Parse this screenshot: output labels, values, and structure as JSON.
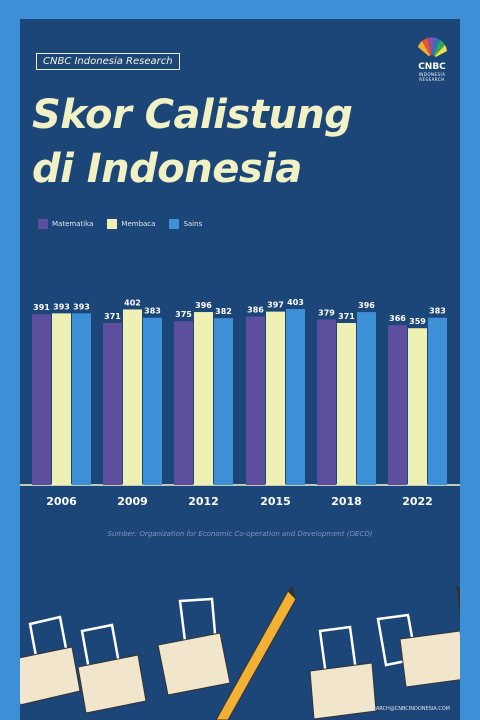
{
  "header": {
    "tag": "CNBC Indonesia Research",
    "title_line1": "Skor Calistung",
    "title_line2": "di Indonesia",
    "logo_text": "CNBC",
    "logo_sub": "INDONESIA",
    "logo_sub2": "RESEARCH"
  },
  "colors": {
    "background": "#1c4578",
    "frame": "#3d8fd6",
    "matematika": "#5d4f9e",
    "membaca": "#eef0b4",
    "sains": "#3d8fd6",
    "title": "#f0f2c6"
  },
  "chart_data": {
    "type": "bar",
    "title": "Skor Calistung di Indonesia",
    "categories": [
      "2006",
      "2009",
      "2012",
      "2015",
      "2018",
      "2022"
    ],
    "series": [
      {
        "name": "Matematika",
        "color": "#5d4f9e",
        "values": [
          391,
          371,
          375,
          386,
          379,
          366
        ]
      },
      {
        "name": "Membaca",
        "color": "#eef0b4",
        "values": [
          393,
          402,
          396,
          397,
          371,
          359
        ]
      },
      {
        "name": "Sains",
        "color": "#3d8fd6",
        "values": [
          393,
          383,
          382,
          403,
          396,
          383
        ]
      }
    ],
    "ylim": [
      0,
      403
    ],
    "legend": "top-left",
    "grid": false
  },
  "source": "Sumber: Organization for Economic Co-operation and Development (OECD)",
  "footer": "RESEARCH@CNBCINDONESIA.COM"
}
